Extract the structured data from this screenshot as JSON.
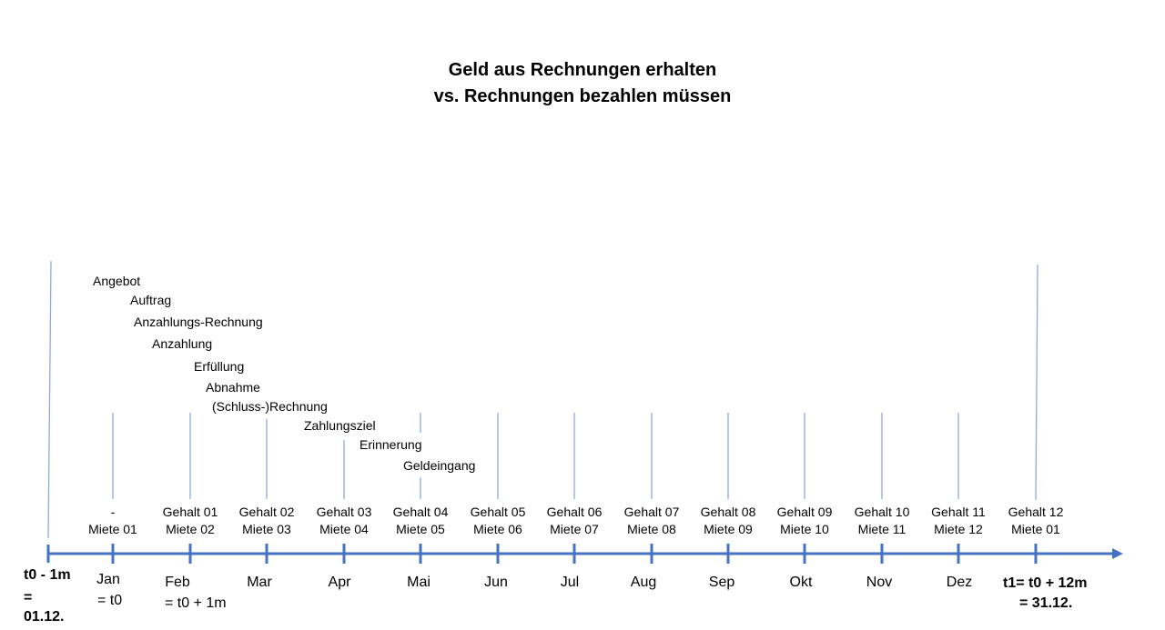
{
  "title_line1": "Geld aus Rechnungen erhalten",
  "title_line2": "vs. Rechnungen bezahlen müssen",
  "process_steps": [
    "Angebot",
    "Auftrag",
    "Anzahlungs-Rechnung",
    "Anzahlung",
    "Erfüllung",
    "Abnahme",
    "(Schluss-)Rechnung",
    "Zahlungsziel",
    "Erinnerung",
    "Geldeingang"
  ],
  "months": [
    {
      "name": "Jan",
      "sub": "= t0",
      "gehalt": "-",
      "miete": "Miete 01"
    },
    {
      "name": "Feb",
      "sub": "= t0 + 1m",
      "gehalt": "Gehalt 01",
      "miete": "Miete 02"
    },
    {
      "name": "Mar",
      "sub": "",
      "gehalt": "Gehalt 02",
      "miete": "Miete 03"
    },
    {
      "name": "Apr",
      "sub": "",
      "gehalt": "Gehalt 03",
      "miete": "Miete 04"
    },
    {
      "name": "Mai",
      "sub": "",
      "gehalt": "Gehalt 04",
      "miete": "Miete 05"
    },
    {
      "name": "Jun",
      "sub": "",
      "gehalt": "Gehalt 05",
      "miete": "Miete 06"
    },
    {
      "name": "Jul",
      "sub": "",
      "gehalt": "Gehalt 06",
      "miete": "Miete 07"
    },
    {
      "name": "Aug",
      "sub": "",
      "gehalt": "Gehalt 07",
      "miete": "Miete 08"
    },
    {
      "name": "Sep",
      "sub": "",
      "gehalt": "Gehalt 08",
      "miete": "Miete 09"
    },
    {
      "name": "Okt",
      "sub": "",
      "gehalt": "Gehalt 09",
      "miete": "Miete 10"
    },
    {
      "name": "Nov",
      "sub": "",
      "gehalt": "Gehalt 10",
      "miete": "Miete 11"
    },
    {
      "name": "Dez",
      "sub": "",
      "gehalt": "Gehalt 11",
      "miete": "Miete 12"
    },
    {
      "name": "",
      "sub": "",
      "gehalt": "Gehalt 12",
      "miete": "Miete 01"
    }
  ],
  "start_label": {
    "line1": "t0 - 1m",
    "line2": "=",
    "line3": "01.12."
  },
  "end_label": {
    "line1": "t1= t0 + 12m",
    "line2": "= 31.12."
  },
  "colors": {
    "axis": "#4472c4",
    "marker": "#8faadc"
  }
}
